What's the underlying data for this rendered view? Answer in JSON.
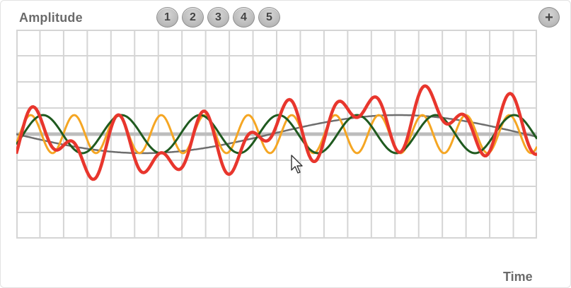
{
  "labels": {
    "amplitude": "Amplitude",
    "time": "Time"
  },
  "wave_buttons": [
    "1",
    "2",
    "3",
    "4",
    "5"
  ],
  "add_button": "+",
  "icons": {
    "add": "plus-icon",
    "cursor": "mouse-pointer-icon"
  },
  "colors": {
    "grid": "#d5d5d5",
    "baseline": "#bdbdbd",
    "sum_wave": "#e8362d",
    "wave_green": "#1f5a1f",
    "wave_orange": "#f5a623",
    "wave_gray": "#6e6e6e"
  }
}
